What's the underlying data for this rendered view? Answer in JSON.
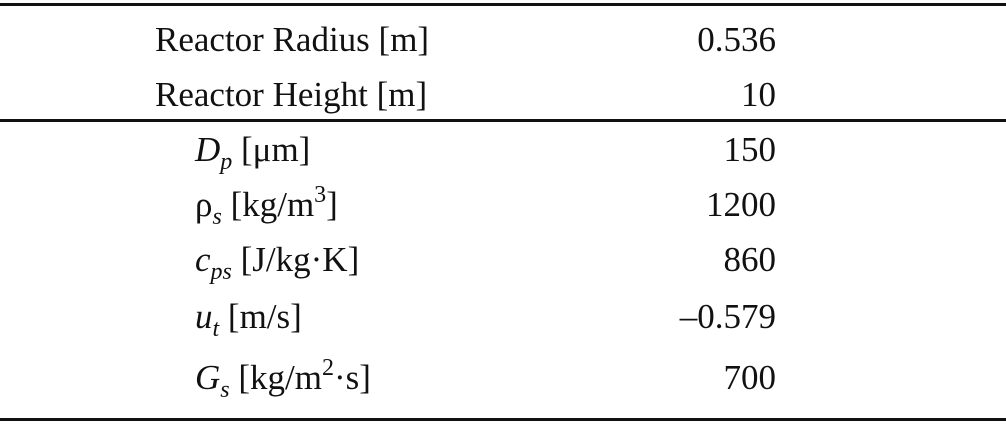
{
  "table": {
    "rows": [
      {
        "label": "Reactor Radius [m]",
        "value": "0.536"
      },
      {
        "label": "Reactor Height [m]",
        "value": "10"
      },
      {
        "symbol": "D",
        "sub": "p",
        "unit_pre": " [μm]",
        "sup": "",
        "unit_post": "",
        "value": "150"
      },
      {
        "symbol": "ρ",
        "sub": "s",
        "unit_pre": " [kg/m",
        "sup": "3",
        "unit_post": "]",
        "value": "1200"
      },
      {
        "symbol": "c",
        "sub": "ps",
        "unit_pre": " [J/kg·K]",
        "sup": "",
        "unit_post": "",
        "value": "860"
      },
      {
        "symbol": "u",
        "sub": "t",
        "unit_pre": " [m/s]",
        "sup": "",
        "unit_post": "",
        "value": "–0.579"
      },
      {
        "symbol": "G",
        "sub": "s",
        "unit_pre": " [kg/m",
        "sup": "2",
        "unit_post": "·s]",
        "value": "700"
      }
    ]
  }
}
